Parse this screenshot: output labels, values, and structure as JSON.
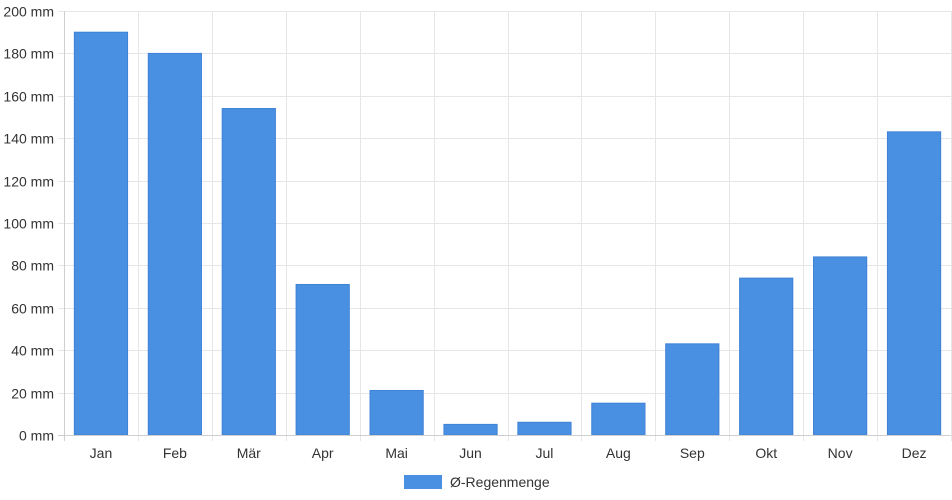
{
  "chart_data": {
    "type": "bar",
    "categories": [
      "Jan",
      "Feb",
      "Mär",
      "Apr",
      "Mai",
      "Jun",
      "Jul",
      "Aug",
      "Sep",
      "Okt",
      "Nov",
      "Dez"
    ],
    "series": [
      {
        "name": "Ø-Regenmenge",
        "values": [
          190,
          180,
          154,
          71,
          21,
          5,
          6,
          15,
          43,
          74,
          84,
          143
        ],
        "color": "#4a90e2"
      }
    ],
    "ylim": [
      0,
      200
    ],
    "y_tick_step": 20,
    "y_unit_suffix": " mm",
    "grid": true,
    "legend_position": "bottom-center"
  }
}
